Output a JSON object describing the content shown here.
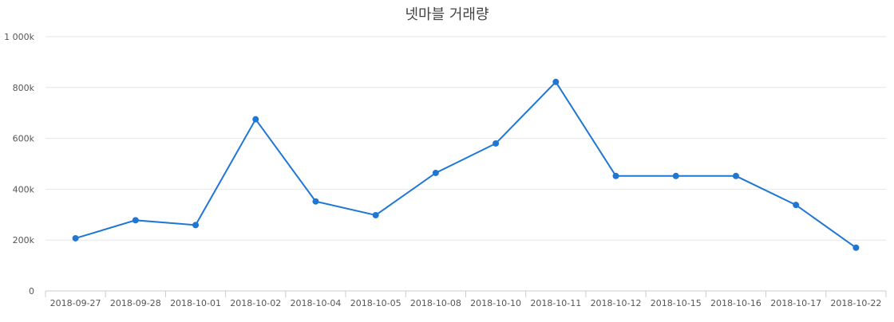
{
  "chart_data": {
    "type": "line",
    "title": "넷마블 거래량",
    "xlabel": "",
    "ylabel": "",
    "categories": [
      "2018-09-27",
      "2018-09-28",
      "2018-10-01",
      "2018-10-02",
      "2018-10-04",
      "2018-10-05",
      "2018-10-08",
      "2018-10-10",
      "2018-10-11",
      "2018-10-12",
      "2018-10-15",
      "2018-10-16",
      "2018-10-17",
      "2018-10-22"
    ],
    "series": [
      {
        "color": "#1f77d4",
        "values": [
          207000,
          278000,
          259000,
          675000,
          352000,
          298000,
          464000,
          580000,
          822000,
          452000,
          452000,
          452000,
          338000,
          170000
        ]
      }
    ],
    "ylim": [
      0,
      1000000
    ],
    "yticks": [
      0,
      200000,
      400000,
      600000,
      800000,
      1000000
    ],
    "ytick_labels": [
      "0",
      "200k",
      "400k",
      "600k",
      "800k",
      "1 000k"
    ],
    "grid": true,
    "legend": "none"
  }
}
